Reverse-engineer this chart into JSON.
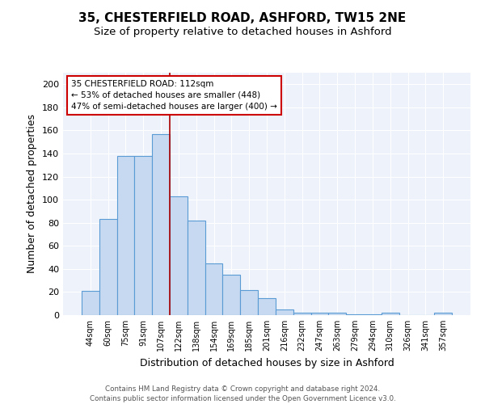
{
  "title1": "35, CHESTERFIELD ROAD, ASHFORD, TW15 2NE",
  "title2": "Size of property relative to detached houses in Ashford",
  "xlabel": "Distribution of detached houses by size in Ashford",
  "ylabel": "Number of detached properties",
  "categories": [
    "44sqm",
    "60sqm",
    "75sqm",
    "91sqm",
    "107sqm",
    "122sqm",
    "138sqm",
    "154sqm",
    "169sqm",
    "185sqm",
    "201sqm",
    "216sqm",
    "232sqm",
    "247sqm",
    "263sqm",
    "279sqm",
    "294sqm",
    "310sqm",
    "326sqm",
    "341sqm",
    "357sqm"
  ],
  "values": [
    21,
    83,
    138,
    138,
    157,
    103,
    82,
    45,
    35,
    22,
    15,
    5,
    2,
    2,
    2,
    1,
    1,
    2,
    0,
    0,
    2
  ],
  "bar_color": "#c6d9f0",
  "bar_edge_color": "#5b9bd5",
  "red_line_x": 4.5,
  "ylim": [
    0,
    210
  ],
  "yticks": [
    0,
    20,
    40,
    60,
    80,
    100,
    120,
    140,
    160,
    180,
    200
  ],
  "annotation_line1": "35 CHESTERFIELD ROAD: 112sqm",
  "annotation_line2": "← 53% of detached houses are smaller (448)",
  "annotation_line3": "47% of semi-detached houses are larger (400) →",
  "annotation_box_color": "#ffffff",
  "annotation_box_edge_color": "#cc0000",
  "footer1": "Contains HM Land Registry data © Crown copyright and database right 2024.",
  "footer2": "Contains public sector information licensed under the Open Government Licence v3.0.",
  "bg_color": "#eef2fa",
  "grid_color": "#ffffff",
  "title1_fontsize": 11,
  "title2_fontsize": 9.5,
  "xlabel_fontsize": 9,
  "ylabel_fontsize": 9
}
